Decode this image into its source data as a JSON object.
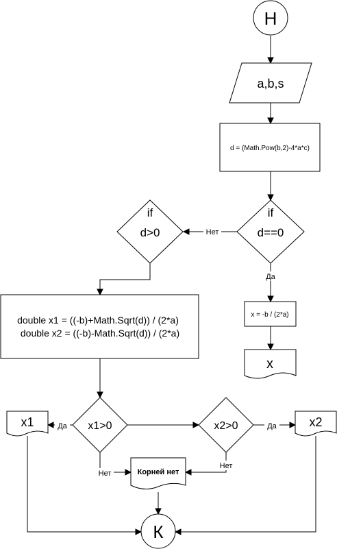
{
  "nodes": {
    "start": "Н",
    "input": "a,b,s",
    "calc_d": "d = (Math.Pow(b,2)-4*a*c)",
    "cond_d_eq_if": "if",
    "cond_d_eq": "d==0",
    "cond_d_gt_if": "if",
    "cond_d_gt": "d>0",
    "calc_x": "x = -b / (2*a)",
    "out_x": "x",
    "calc_x1": "double x1 = ((-b)+Math.Sqrt(d)) / (2*a)",
    "calc_x2": "double x2 = ((-b)-Math.Sqrt(d)) / (2*a)",
    "cond_x1": "x1>0",
    "cond_x2": "x2>0",
    "out_x1": "x1",
    "out_x2": "x2",
    "no_roots": "Корней нет",
    "end": "К"
  },
  "edges": {
    "no_d_eq": "Нет",
    "yes_d_eq": "Да",
    "yes_x1": "Да",
    "no_x1": "Нет",
    "yes_x2": "Да",
    "no_x2": "Нет"
  }
}
